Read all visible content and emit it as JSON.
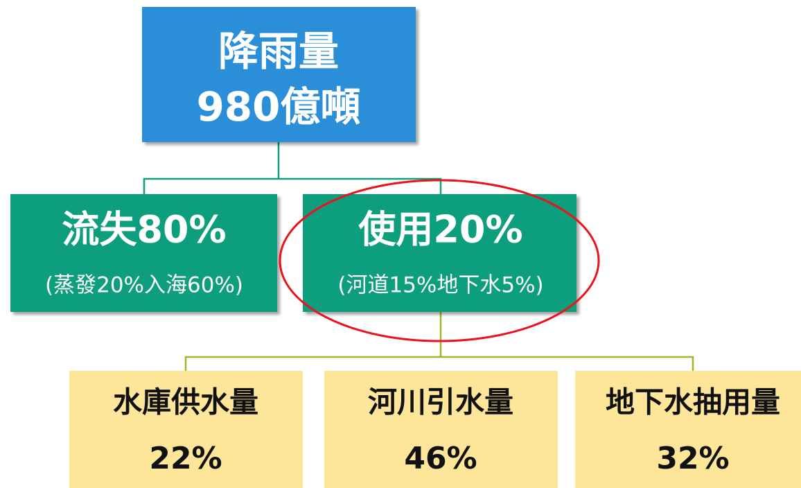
{
  "nodes": [
    {
      "title": "降雨量",
      "subtitle": "980億噸"
    },
    {
      "title": "流失80%",
      "subtitle": "(蒸發20%入海60%)"
    },
    {
      "title": "使用20%",
      "subtitle": "(河道15%地下水5%)"
    },
    {
      "title": "水庫供水量",
      "subtitle": "22%"
    },
    {
      "title": "河川引水量",
      "subtitle": "46%"
    },
    {
      "title": "地下水抽用量",
      "subtitle": "32%"
    }
  ]
}
